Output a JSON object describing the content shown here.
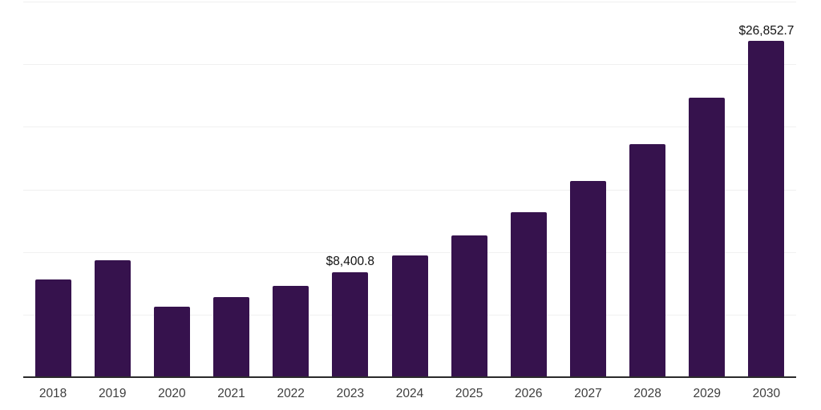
{
  "chart_data": {
    "type": "bar",
    "categories": [
      "2018",
      "2019",
      "2020",
      "2021",
      "2022",
      "2023",
      "2024",
      "2025",
      "2026",
      "2027",
      "2028",
      "2029",
      "2030"
    ],
    "values": [
      7800,
      9350,
      5650,
      6400,
      7300,
      8400.8,
      9750,
      11350,
      13200,
      15700,
      18600,
      22300,
      26852.7
    ],
    "data_labels": [
      "",
      "",
      "",
      "",
      "",
      "$8,400.8",
      "",
      "",
      "",
      "",
      "",
      "",
      "$26,852.7"
    ],
    "title": "",
    "xlabel": "",
    "ylabel": "",
    "ylim": [
      0,
      30000
    ],
    "gridline_step": 5000,
    "grid": "horizontal",
    "legend": "none"
  },
  "colors": {
    "background": "#ffffff",
    "bar": "#36124D",
    "gridline": "#f0f0f0",
    "axis_line": "#2b2b2b",
    "tick_label": "#3d3d3d",
    "data_label": "#111111"
  }
}
